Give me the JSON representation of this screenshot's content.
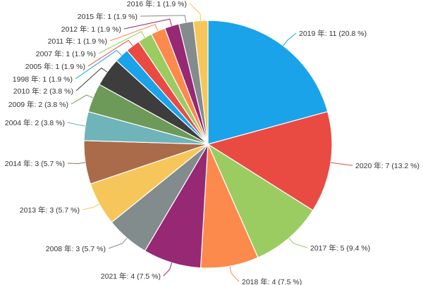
{
  "chart_data": {
    "type": "pie",
    "title": "",
    "slices": [
      {
        "label": "2019 年: 11 (20.8 %)",
        "value": 11,
        "color": "#1aa3e8"
      },
      {
        "label": "2020 年: 7 (13.2 %)",
        "value": 7,
        "color": "#e94b43"
      },
      {
        "label": "2017 年: 5 (9.4 %)",
        "value": 5,
        "color": "#9bcc62"
      },
      {
        "label": "2018 年: 4 (7.5 %)",
        "value": 4,
        "color": "#fb8a4c"
      },
      {
        "label": "2021 年: 4 (7.5 %)",
        "value": 4,
        "color": "#962874"
      },
      {
        "label": "2008 年: 3 (5.7 %)",
        "value": 3,
        "color": "#828c8c"
      },
      {
        "label": "2013 年: 3 (5.7 %)",
        "value": 3,
        "color": "#f7c65a"
      },
      {
        "label": "2014 年: 3 (5.7 %)",
        "value": 3,
        "color": "#aa6b4a"
      },
      {
        "label": "2004 年: 2 (3.8 %)",
        "value": 2,
        "color": "#6eb4b9"
      },
      {
        "label": "2009 年: 2 (3.8 %)",
        "value": 2,
        "color": "#6d9a58"
      },
      {
        "label": "2010 年: 2 (3.8 %)",
        "value": 2,
        "color": "#3d3d3d"
      },
      {
        "label": "1998 年: 1 (1.9 %)",
        "value": 1,
        "color": "#1aa3e8"
      },
      {
        "label": "2005 年: 1 (1.9 %)",
        "value": 1,
        "color": "#e94b43"
      },
      {
        "label": "2007 年: 1 (1.9 %)",
        "value": 1,
        "color": "#9bcc62"
      },
      {
        "label": "2011 年: 1 (1.9 %)",
        "value": 1,
        "color": "#fb8a4c"
      },
      {
        "label": "2012 年: 1 (1.9 %)",
        "value": 1,
        "color": "#962874"
      },
      {
        "label": "2015 年: 1 (1.9 %)",
        "value": 1,
        "color": "#828c8c"
      },
      {
        "label": "2016 年: 1 (1.9 %)",
        "value": 1,
        "color": "#f7c65a"
      }
    ]
  }
}
